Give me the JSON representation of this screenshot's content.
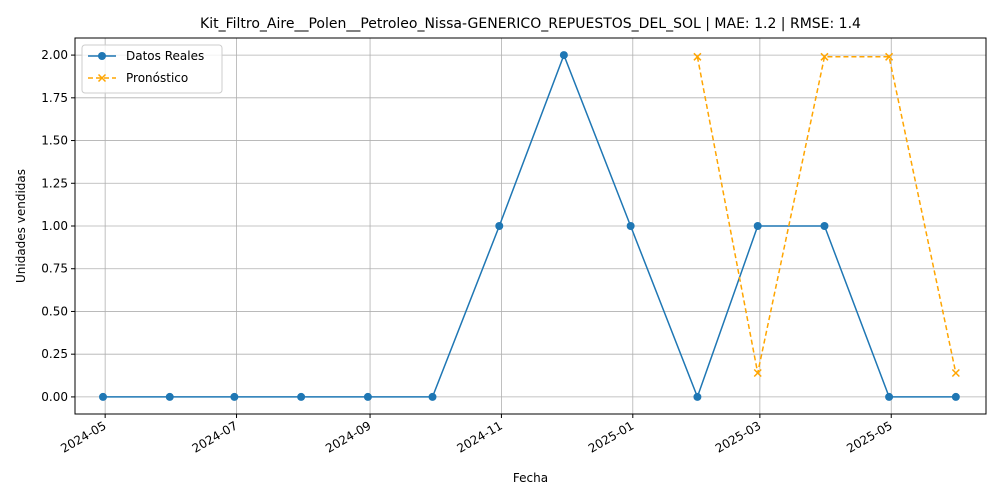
{
  "chart_data": {
    "type": "line",
    "title": "Kit_Filtro_Aire__Polen__Petroleo_Nissa-GENERICO_REPUESTOS_DEL_SOL | MAE: 1.2 | RMSE: 1.4",
    "xlabel": "Fecha",
    "ylabel": "Unidades vendidas",
    "x_ticks": [
      "2024-05",
      "2024-07",
      "2024-09",
      "2024-11",
      "2025-01",
      "2025-03",
      "2025-05"
    ],
    "y_ticks": [
      "0.00",
      "0.25",
      "0.50",
      "0.75",
      "1.00",
      "1.25",
      "1.50",
      "1.75",
      "2.00"
    ],
    "xlim": [
      "2024-04-17",
      "2025-06-14"
    ],
    "ylim": [
      -0.1,
      2.1
    ],
    "grid": true,
    "legend_position": "top-left",
    "series": [
      {
        "name": "Datos Reales",
        "color": "#1f77b4",
        "style": "solid",
        "marker": "circle",
        "x": [
          "2024-04-30",
          "2024-05-31",
          "2024-06-30",
          "2024-07-31",
          "2024-08-31",
          "2024-09-30",
          "2024-10-31",
          "2024-11-30",
          "2024-12-31",
          "2025-01-31",
          "2025-02-28",
          "2025-03-31",
          "2025-04-30",
          "2025-05-31"
        ],
        "values": [
          0,
          0,
          0,
          0,
          0,
          0,
          1,
          2,
          1,
          0,
          1,
          1,
          0,
          0
        ]
      },
      {
        "name": "Pronóstico",
        "color": "#ffa500",
        "style": "dashed",
        "marker": "x",
        "x": [
          "2025-01-31",
          "2025-02-28",
          "2025-03-31",
          "2025-04-30",
          "2025-05-31"
        ],
        "values": [
          1.99,
          0.14,
          1.99,
          1.99,
          0.14
        ]
      }
    ]
  }
}
